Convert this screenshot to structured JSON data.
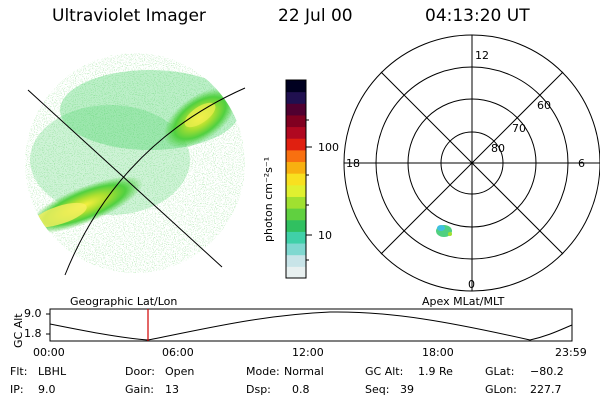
{
  "header": {
    "instrument": "Ultraviolet Imager",
    "date": "22 Jul 00",
    "time": "04:13:20 UT"
  },
  "colorbar": {
    "label": "photon cm⁻²s⁻¹",
    "ticks": [
      "100",
      "10"
    ],
    "colors": [
      "#e8f0f0",
      "#c8e4e8",
      "#80d8d0",
      "#40d0a8",
      "#30c060",
      "#60d040",
      "#a0e030",
      "#e0f030",
      "#f8e020",
      "#f8b010",
      "#f87010",
      "#e02010",
      "#b00820",
      "#800020",
      "#500030",
      "#201050",
      "#000020"
    ]
  },
  "polar_plot": {
    "labels": {
      "top": "12",
      "bottom": "0",
      "left": "18",
      "right": "6",
      "ring_60": "60",
      "ring_70": "70",
      "ring_80": "80"
    }
  },
  "timeline": {
    "ylabel": "GC Alt",
    "left_caption": "Geographic Lat/Lon",
    "right_caption": "Apex MLat/MLT",
    "y_ticks": [
      "9.0",
      "1.8"
    ],
    "x_ticks": [
      "00:00",
      "06:00",
      "12:00",
      "18:00",
      "23:59"
    ]
  },
  "status": {
    "filter_label": "Flt:",
    "filter_value": "LBHL",
    "ip_label": "IP:",
    "ip_value": "9.0",
    "door_label": "Door:",
    "door_value": "Open",
    "gain_label": "Gain:",
    "gain_value": "13",
    "mode_label": "Mode:",
    "mode_value": "Normal",
    "dsp_label": "Dsp:",
    "dsp_value": "0.8",
    "gcalt_label": "GC Alt:",
    "gcalt_value": "1.9 Re",
    "seq_label": "Seq:",
    "seq_value": "39",
    "glat_label": "GLat:",
    "glat_value": "−80.2",
    "glon_label": "GLon:",
    "glon_value": "227.7"
  }
}
